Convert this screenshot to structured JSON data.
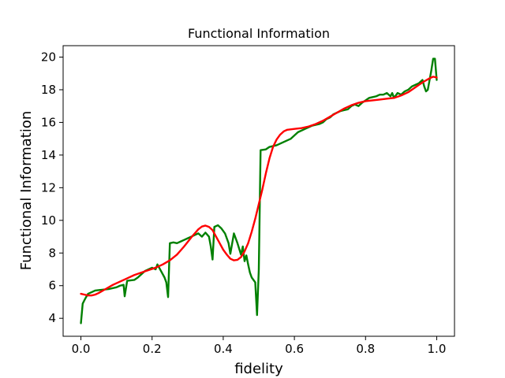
{
  "chart_data": {
    "type": "line",
    "title": "Functional Information",
    "xlabel": "fidelity",
    "ylabel": "Functional Information",
    "xlim": [
      -0.05,
      1.05
    ],
    "ylim": [
      2.9,
      20.7
    ],
    "xticks": [
      0.0,
      0.2,
      0.4,
      0.6,
      0.8,
      1.0
    ],
    "xtick_labels": [
      "0.0",
      "0.2",
      "0.4",
      "0.6",
      "0.8",
      "1.0"
    ],
    "yticks": [
      4,
      6,
      8,
      10,
      12,
      14,
      16,
      18,
      20
    ],
    "ytick_labels": [
      "4",
      "6",
      "8",
      "10",
      "12",
      "14",
      "16",
      "18",
      "20"
    ],
    "grid": false,
    "series": [
      {
        "color": "#008000",
        "points": [
          [
            0.0,
            3.7
          ],
          [
            0.005,
            4.9
          ],
          [
            0.012,
            5.2
          ],
          [
            0.02,
            5.5
          ],
          [
            0.03,
            5.6
          ],
          [
            0.04,
            5.7
          ],
          [
            0.06,
            5.75
          ],
          [
            0.08,
            5.8
          ],
          [
            0.1,
            5.9
          ],
          [
            0.11,
            6.0
          ],
          [
            0.12,
            6.05
          ],
          [
            0.123,
            5.35
          ],
          [
            0.13,
            6.3
          ],
          [
            0.15,
            6.35
          ],
          [
            0.16,
            6.5
          ],
          [
            0.18,
            6.9
          ],
          [
            0.2,
            7.1
          ],
          [
            0.21,
            7.0
          ],
          [
            0.215,
            7.3
          ],
          [
            0.225,
            6.9
          ],
          [
            0.235,
            6.5
          ],
          [
            0.24,
            6.2
          ],
          [
            0.245,
            5.3
          ],
          [
            0.25,
            8.6
          ],
          [
            0.26,
            8.65
          ],
          [
            0.27,
            8.6
          ],
          [
            0.28,
            8.7
          ],
          [
            0.29,
            8.8
          ],
          [
            0.3,
            8.9
          ],
          [
            0.31,
            9.0
          ],
          [
            0.32,
            9.1
          ],
          [
            0.33,
            9.2
          ],
          [
            0.34,
            9.0
          ],
          [
            0.35,
            9.25
          ],
          [
            0.36,
            9.0
          ],
          [
            0.365,
            8.4
          ],
          [
            0.37,
            7.6
          ],
          [
            0.375,
            9.6
          ],
          [
            0.385,
            9.7
          ],
          [
            0.395,
            9.5
          ],
          [
            0.405,
            9.2
          ],
          [
            0.415,
            8.6
          ],
          [
            0.42,
            7.95
          ],
          [
            0.43,
            9.2
          ],
          [
            0.44,
            8.6
          ],
          [
            0.45,
            7.9
          ],
          [
            0.455,
            8.4
          ],
          [
            0.46,
            7.5
          ],
          [
            0.465,
            7.85
          ],
          [
            0.47,
            7.3
          ],
          [
            0.475,
            6.8
          ],
          [
            0.48,
            6.5
          ],
          [
            0.49,
            6.2
          ],
          [
            0.495,
            4.2
          ],
          [
            0.5,
            7.0
          ],
          [
            0.505,
            14.3
          ],
          [
            0.52,
            14.35
          ],
          [
            0.53,
            14.5
          ],
          [
            0.55,
            14.6
          ],
          [
            0.57,
            14.8
          ],
          [
            0.59,
            15.0
          ],
          [
            0.6,
            15.2
          ],
          [
            0.61,
            15.4
          ],
          [
            0.63,
            15.6
          ],
          [
            0.65,
            15.8
          ],
          [
            0.67,
            15.9
          ],
          [
            0.68,
            16.0
          ],
          [
            0.69,
            16.2
          ],
          [
            0.7,
            16.3
          ],
          [
            0.71,
            16.5
          ],
          [
            0.72,
            16.6
          ],
          [
            0.73,
            16.7
          ],
          [
            0.74,
            16.75
          ],
          [
            0.75,
            16.8
          ],
          [
            0.76,
            17.0
          ],
          [
            0.77,
            17.1
          ],
          [
            0.78,
            17.0
          ],
          [
            0.79,
            17.2
          ],
          [
            0.8,
            17.35
          ],
          [
            0.81,
            17.5
          ],
          [
            0.82,
            17.55
          ],
          [
            0.83,
            17.6
          ],
          [
            0.84,
            17.7
          ],
          [
            0.85,
            17.7
          ],
          [
            0.86,
            17.8
          ],
          [
            0.87,
            17.6
          ],
          [
            0.875,
            17.8
          ],
          [
            0.88,
            17.5
          ],
          [
            0.89,
            17.8
          ],
          [
            0.9,
            17.7
          ],
          [
            0.91,
            17.9
          ],
          [
            0.92,
            18.0
          ],
          [
            0.93,
            18.2
          ],
          [
            0.94,
            18.3
          ],
          [
            0.95,
            18.4
          ],
          [
            0.96,
            18.6
          ],
          [
            0.965,
            18.2
          ],
          [
            0.97,
            17.9
          ],
          [
            0.975,
            18.0
          ],
          [
            0.98,
            18.6
          ],
          [
            0.985,
            19.2
          ],
          [
            0.99,
            19.9
          ],
          [
            0.995,
            19.9
          ],
          [
            1.0,
            18.6
          ]
        ]
      },
      {
        "color": "#ff0000",
        "points": [
          [
            0.0,
            5.5
          ],
          [
            0.01,
            5.45
          ],
          [
            0.02,
            5.4
          ],
          [
            0.03,
            5.4
          ],
          [
            0.04,
            5.45
          ],
          [
            0.05,
            5.55
          ],
          [
            0.07,
            5.8
          ],
          [
            0.09,
            6.05
          ],
          [
            0.11,
            6.25
          ],
          [
            0.13,
            6.45
          ],
          [
            0.15,
            6.65
          ],
          [
            0.17,
            6.8
          ],
          [
            0.19,
            6.95
          ],
          [
            0.21,
            7.1
          ],
          [
            0.23,
            7.3
          ],
          [
            0.25,
            7.55
          ],
          [
            0.27,
            7.9
          ],
          [
            0.29,
            8.4
          ],
          [
            0.31,
            8.95
          ],
          [
            0.33,
            9.45
          ],
          [
            0.34,
            9.62
          ],
          [
            0.35,
            9.68
          ],
          [
            0.36,
            9.6
          ],
          [
            0.37,
            9.4
          ],
          [
            0.38,
            9.0
          ],
          [
            0.39,
            8.6
          ],
          [
            0.4,
            8.2
          ],
          [
            0.41,
            7.9
          ],
          [
            0.42,
            7.65
          ],
          [
            0.43,
            7.55
          ],
          [
            0.44,
            7.58
          ],
          [
            0.45,
            7.75
          ],
          [
            0.46,
            8.1
          ],
          [
            0.47,
            8.6
          ],
          [
            0.48,
            9.3
          ],
          [
            0.49,
            10.1
          ],
          [
            0.5,
            11.0
          ],
          [
            0.51,
            11.9
          ],
          [
            0.52,
            12.9
          ],
          [
            0.53,
            13.8
          ],
          [
            0.54,
            14.5
          ],
          [
            0.55,
            14.95
          ],
          [
            0.56,
            15.25
          ],
          [
            0.57,
            15.45
          ],
          [
            0.58,
            15.55
          ],
          [
            0.6,
            15.6
          ],
          [
            0.62,
            15.65
          ],
          [
            0.64,
            15.75
          ],
          [
            0.66,
            15.9
          ],
          [
            0.68,
            16.1
          ],
          [
            0.7,
            16.35
          ],
          [
            0.72,
            16.6
          ],
          [
            0.74,
            16.85
          ],
          [
            0.76,
            17.05
          ],
          [
            0.78,
            17.2
          ],
          [
            0.8,
            17.3
          ],
          [
            0.82,
            17.35
          ],
          [
            0.84,
            17.4
          ],
          [
            0.86,
            17.45
          ],
          [
            0.88,
            17.5
          ],
          [
            0.9,
            17.65
          ],
          [
            0.92,
            17.85
          ],
          [
            0.94,
            18.15
          ],
          [
            0.96,
            18.45
          ],
          [
            0.98,
            18.7
          ],
          [
            0.99,
            18.8
          ],
          [
            1.0,
            18.75
          ]
        ]
      }
    ]
  }
}
